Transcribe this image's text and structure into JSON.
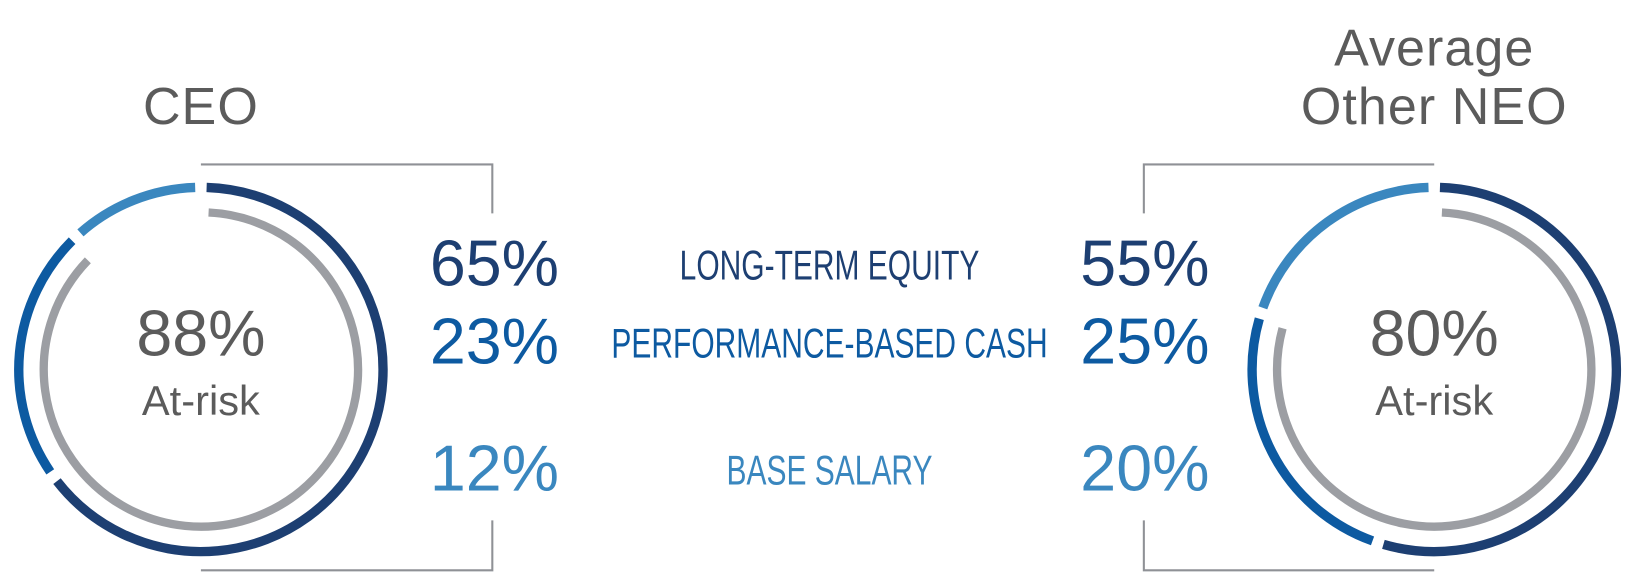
{
  "chart_data": [
    {
      "type": "donut",
      "title": "CEO",
      "categories": [
        "LONG-TERM EQUITY",
        "PERFORMANCE-BASED CASH",
        "BASE SALARY"
      ],
      "values": [
        65,
        23,
        12
      ],
      "value_labels": [
        "65%",
        "23%",
        "12%"
      ],
      "colors": [
        "#1d3f72",
        "#0d5aa1",
        "#3a87bf"
      ],
      "at_risk": {
        "value": 88,
        "label": "88%"
      },
      "at_risk_text": "At-risk",
      "at_risk_color": "#9c9ea3"
    },
    {
      "type": "donut",
      "title": "Average Other NEO",
      "values": [
        55,
        25,
        20
      ],
      "value_labels": [
        "55%",
        "25%",
        "20%"
      ],
      "colors": [
        "#1d3f72",
        "#0d5aa1",
        "#3a87bf"
      ],
      "at_risk": {
        "value": 80,
        "label": "80%"
      },
      "at_risk_text": "At-risk",
      "at_risk_color": "#9c9ea3"
    }
  ]
}
